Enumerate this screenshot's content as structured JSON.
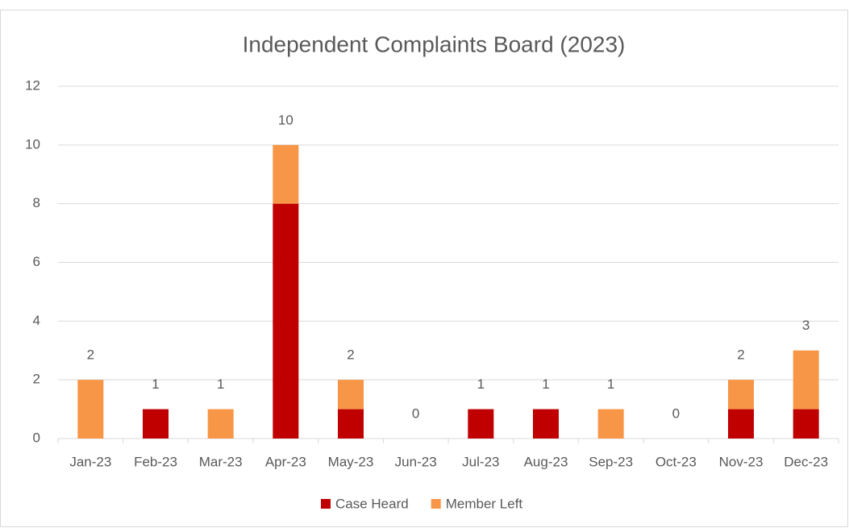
{
  "chart_data": {
    "type": "stacked_bar",
    "title": "Independent Complaints Board (2023)",
    "categories": [
      "Jan-23",
      "Feb-23",
      "Mar-23",
      "Apr-23",
      "May-23",
      "Jun-23",
      "Jul-23",
      "Aug-23",
      "Sep-23",
      "Oct-23",
      "Nov-23",
      "Dec-23"
    ],
    "series": [
      {
        "name": "Case Heard",
        "color": "#c00000",
        "values": [
          0,
          1,
          0,
          8,
          1,
          0,
          1,
          1,
          0,
          0,
          1,
          1
        ]
      },
      {
        "name": "Member Left",
        "color": "#f79646",
        "values": [
          2,
          0,
          1,
          2,
          1,
          0,
          0,
          0,
          1,
          0,
          1,
          2
        ]
      }
    ],
    "totals": [
      2,
      1,
      1,
      10,
      2,
      0,
      1,
      1,
      1,
      0,
      2,
      3
    ],
    "ylim": [
      0,
      12
    ],
    "yticks": [
      0,
      2,
      4,
      6,
      8,
      10,
      12
    ],
    "grid": true
  }
}
